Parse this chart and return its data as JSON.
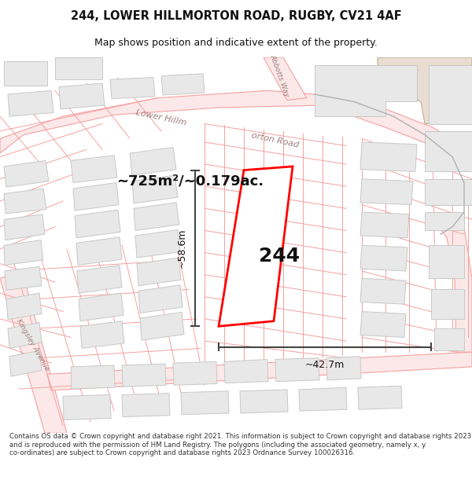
{
  "title_line1": "244, LOWER HILLMORTON ROAD, RUGBY, CV21 4AF",
  "title_line2": "Map shows position and indicative extent of the property.",
  "footer_text": "Contains OS data © Crown copyright and database right 2021. This information is subject to Crown copyright and database rights 2023 and is reproduced with the permission of HM Land Registry. The polygons (including the associated geometry, namely x, y co-ordinates) are subject to Crown copyright and database rights 2023 Ordnance Survey 100026316.",
  "area_label": "~725m²/~0.179ac.",
  "number_label": "244",
  "width_label": "~42.7m",
  "height_label": "~58.6m",
  "bg_color": "#ffffff",
  "building_fill": "#e8e8e8",
  "building_edge": "#c8c8c8",
  "road_line_color": "#f5a0a0",
  "road_fill_color": "#fce8e8",
  "road_label_color": "#a08080",
  "highlight_color": "#ff0000",
  "dim_line_color": "#444444",
  "text_color": "#111111",
  "title_fontsize": 10.5,
  "subtitle_fontsize": 9,
  "footer_fontsize": 6.2,
  "area_fontsize": 13,
  "number_fontsize": 18,
  "dim_fontsize": 9,
  "road_label_fontsize": 8
}
